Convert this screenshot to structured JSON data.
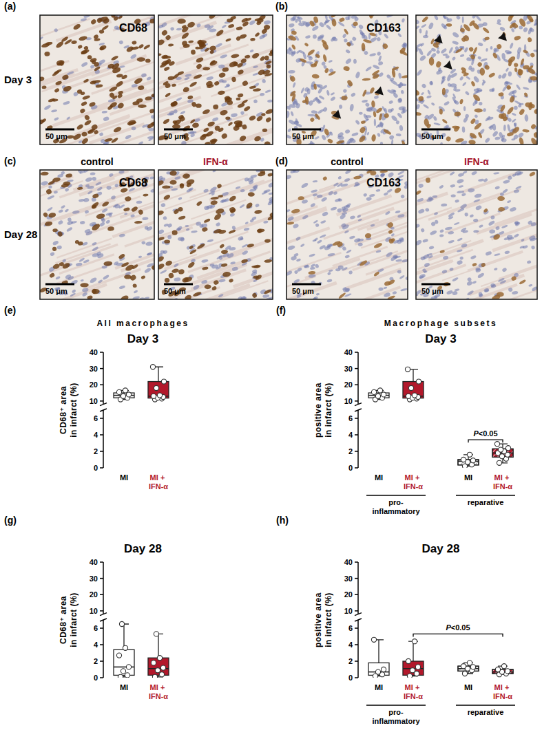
{
  "micrographs": {
    "rows": [
      {
        "label": "Day 3",
        "panels": [
          {
            "letter": "(a)",
            "stain": "CD68"
          },
          {
            "letter": "(b)",
            "stain": "CD163"
          }
        ]
      },
      {
        "label": "Day 28",
        "column_labels": [
          "control",
          "IFN-α"
        ],
        "panels": [
          {
            "letter": "(c)",
            "stain": "CD68"
          },
          {
            "letter": "(d)",
            "stain": "CD163"
          }
        ]
      }
    ],
    "scale_bar": "50 μm"
  },
  "chart_data": [
    {
      "type": "box",
      "panel": "(e)",
      "subtitle": "All macrophages",
      "title": "Day 3",
      "y_label": "CD68⁺ area in infarct (%)",
      "ylim": [
        0,
        40
      ],
      "y_break": [
        7,
        8
      ],
      "yticks": [
        0,
        2,
        4,
        6,
        10,
        20,
        30,
        40
      ],
      "boxes": [
        {
          "category": "MI",
          "color": "#ffffff",
          "min": 11,
          "q1": 12,
          "median": 13.5,
          "q3": 15,
          "max": 16.5,
          "points": [
            11,
            12,
            13,
            14,
            15.5,
            16.5
          ]
        },
        {
          "category": "MI + IFN-α",
          "color": "#b2182b",
          "min": 11,
          "q1": 11.8,
          "median": 13,
          "q3": 22,
          "max": 31,
          "points": [
            11,
            11.5,
            12,
            12.5,
            13,
            13.5,
            18,
            22,
            31
          ]
        }
      ]
    },
    {
      "type": "box",
      "panel": "(f)",
      "subtitle": "Macrophage subsets",
      "title": "Day 3",
      "y_label": "positive area in infarct (%)",
      "ylim": [
        0,
        40
      ],
      "y_break": [
        7,
        8
      ],
      "yticks": [
        0,
        2,
        4,
        6,
        10,
        20,
        30,
        40
      ],
      "groups": [
        {
          "name": "pro-inflammatory",
          "boxes": [
            {
              "category": "MI",
              "color": "#ffffff",
              "min": 11,
              "q1": 12,
              "median": 13.5,
              "q3": 15,
              "max": 16.5,
              "points": [
                11,
                12,
                13,
                14,
                15.5,
                16.5
              ]
            },
            {
              "category": "MI + IFN-α",
              "color": "#b2182b",
              "min": 11,
              "q1": 11.8,
              "median": 13,
              "q3": 22,
              "max": 29.5,
              "points": [
                11,
                11.5,
                12,
                12.5,
                13,
                13.5,
                18,
                22,
                29.5
              ]
            }
          ]
        },
        {
          "name": "reparative",
          "boxes": [
            {
              "category": "MI",
              "color": "#ffffff",
              "min": 0.2,
              "q1": 0.35,
              "median": 0.8,
              "q3": 1.0,
              "max": 1.6,
              "points": [
                0.2,
                0.4,
                0.7,
                0.9,
                1.0,
                1.6
              ]
            },
            {
              "category": "MI + IFN-α",
              "color": "#b2182b",
              "min": 0.6,
              "q1": 1.3,
              "median": 1.8,
              "q3": 2.3,
              "max": 2.9,
              "points": [
                0.6,
                1.1,
                1.4,
                1.6,
                1.8,
                2.0,
                2.2,
                2.4,
                2.9
              ]
            }
          ]
        }
      ],
      "annotations": [
        {
          "text": "P<0.05",
          "between": [
            2,
            3
          ],
          "y": 3.4
        }
      ]
    },
    {
      "type": "box",
      "panel": "(g)",
      "title": "Day 28",
      "y_label": "CD68⁺ area in infarct (%)",
      "ylim": [
        0,
        40
      ],
      "y_break": [
        7,
        8
      ],
      "yticks": [
        0,
        2,
        4,
        6,
        10,
        20,
        30,
        40
      ],
      "boxes": [
        {
          "category": "MI",
          "color": "#ffffff",
          "min": 0.1,
          "q1": 0.3,
          "median": 1.3,
          "q3": 3.4,
          "max": 6.5,
          "points": [
            0.1,
            0.3,
            0.8,
            1.3,
            2.7,
            3.6,
            6.5
          ]
        },
        {
          "category": "MI + IFN-α",
          "color": "#b2182b",
          "min": 0.1,
          "q1": 0.3,
          "median": 1.1,
          "q3": 2.4,
          "max": 5.3,
          "points": [
            0.1,
            0.4,
            0.9,
            1.2,
            1.8,
            2.4,
            5.3
          ]
        }
      ]
    },
    {
      "type": "box",
      "panel": "(h)",
      "title": "Day 28",
      "y_label": "positive area in infarct (%)",
      "ylim": [
        0,
        40
      ],
      "y_break": [
        7,
        8
      ],
      "yticks": [
        0,
        2,
        4,
        6,
        10,
        20,
        30,
        40
      ],
      "groups": [
        {
          "name": "pro-inflammatory",
          "boxes": [
            {
              "category": "MI",
              "color": "#ffffff",
              "min": 0.2,
              "q1": 0.3,
              "median": 0.7,
              "q3": 1.8,
              "max": 4.6,
              "points": [
                0.2,
                0.4,
                0.7,
                1.0,
                4.6
              ]
            },
            {
              "category": "MI + IFN-α",
              "color": "#b2182b",
              "min": 0.2,
              "q1": 0.3,
              "median": 1.1,
              "q3": 2.0,
              "max": 4.4,
              "points": [
                0.2,
                0.5,
                0.9,
                1.3,
                2.0,
                4.4
              ]
            }
          ]
        },
        {
          "name": "reparative",
          "boxes": [
            {
              "category": "MI",
              "color": "#ffffff",
              "min": 0.5,
              "q1": 0.8,
              "median": 1.1,
              "q3": 1.4,
              "max": 1.8,
              "points": [
                0.5,
                0.9,
                1.1,
                1.3,
                1.4,
                1.8
              ]
            },
            {
              "category": "MI + IFN-α",
              "color": "#b2182b",
              "min": 0.4,
              "q1": 0.5,
              "median": 0.7,
              "q3": 1.0,
              "max": 1.4,
              "points": [
                0.4,
                0.5,
                0.7,
                0.8,
                1.0,
                1.4
              ]
            }
          ]
        }
      ],
      "annotations": [
        {
          "text": "P<0.05",
          "between": [
            1,
            3
          ],
          "y": 5.3
        }
      ]
    }
  ]
}
